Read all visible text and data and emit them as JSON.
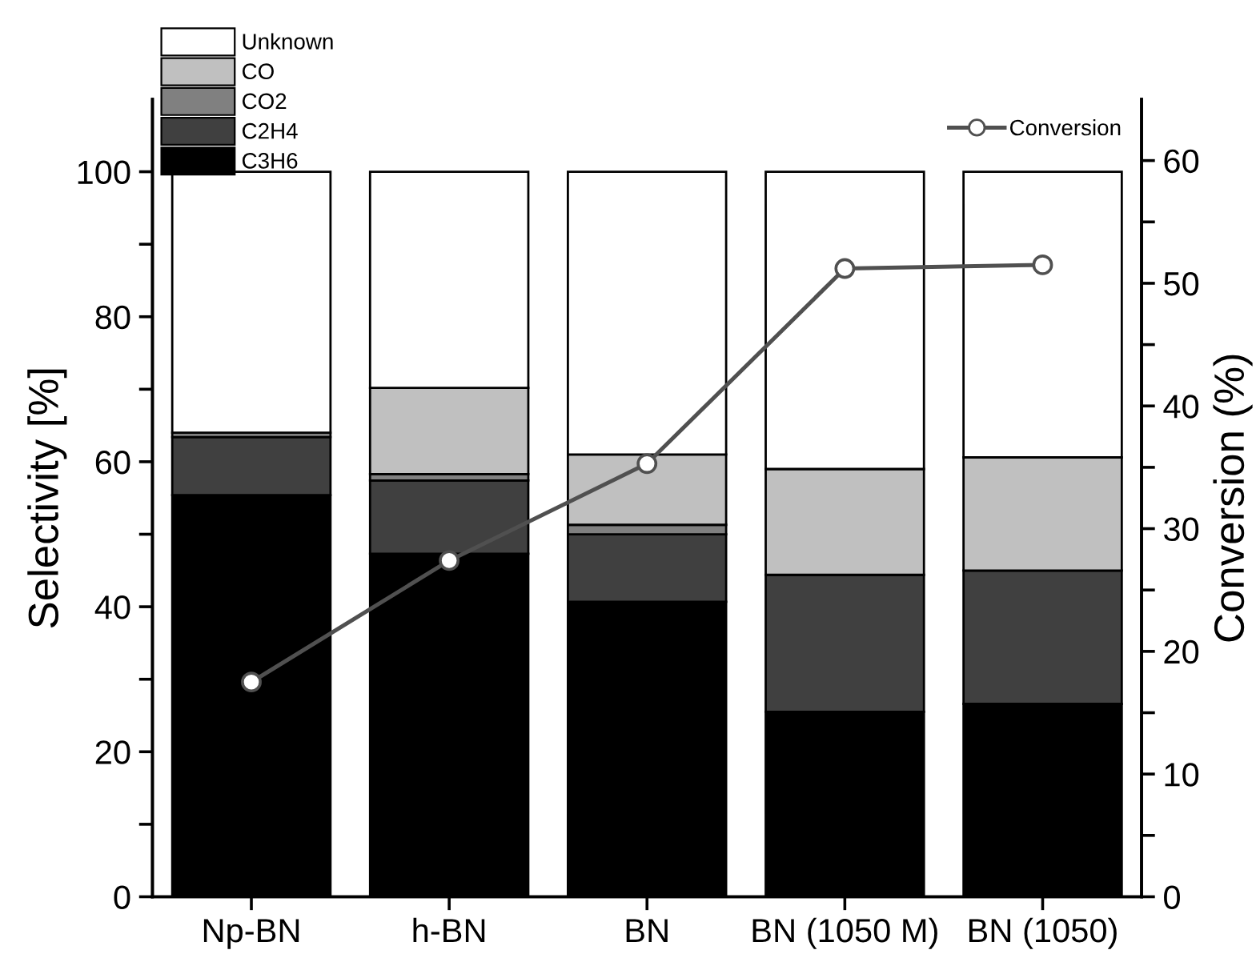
{
  "chart_data": {
    "type": "bar",
    "stacked": true,
    "xlabel": null,
    "ylabel": "Selectivity [%]",
    "y2label": "Conversion (%)",
    "categories": [
      "Np-BN",
      "h-BN",
      "BN",
      "BN (1050 M)",
      "BN (1050)"
    ],
    "series": [
      {
        "name": "C3H6",
        "color": "#000000",
        "values": [
          55.4,
          47.3,
          40.7,
          25.5,
          26.6
        ]
      },
      {
        "name": "C2H4",
        "color": "#404040",
        "values": [
          8.0,
          10.1,
          9.3,
          18.9,
          18.4
        ]
      },
      {
        "name": "CO2",
        "color": "#808080",
        "values": [
          0.6,
          0.9,
          1.3,
          0,
          0
        ]
      },
      {
        "name": "CO",
        "color": "#c0c0c0",
        "values": [
          0,
          11.9,
          9.7,
          14.6,
          15.6
        ]
      },
      {
        "name": "Unknown",
        "color": "#ffffff",
        "values": [
          36.0,
          29.8,
          39.0,
          41.0,
          39.4
        ]
      },
      {
        "name": "Conversion",
        "type": "line",
        "axis": "y2",
        "color": "#505050",
        "marker": "circle",
        "values": [
          17.5,
          27.4,
          35.3,
          51.2,
          51.5
        ]
      }
    ],
    "ylim": [
      0,
      110
    ],
    "yticks": [
      0,
      {
        "value": 10,
        "label": null
      },
      20,
      {
        "value": 30,
        "label": null
      },
      40,
      {
        "value": 50,
        "label": null
      },
      60,
      {
        "value": 70,
        "label": null
      },
      80,
      {
        "value": 90,
        "label": null
      },
      100
    ],
    "y2lim": [
      0,
      65
    ],
    "y2ticks": [
      0,
      {
        "value": 5,
        "label": null
      },
      10,
      {
        "value": 15,
        "label": null
      },
      20,
      {
        "value": 25,
        "label": null
      },
      30,
      {
        "value": 35,
        "label": null
      },
      40,
      {
        "value": 45,
        "label": null
      },
      50,
      {
        "value": 55,
        "label": null
      },
      60
    ],
    "legend": "top left",
    "grid": false
  }
}
